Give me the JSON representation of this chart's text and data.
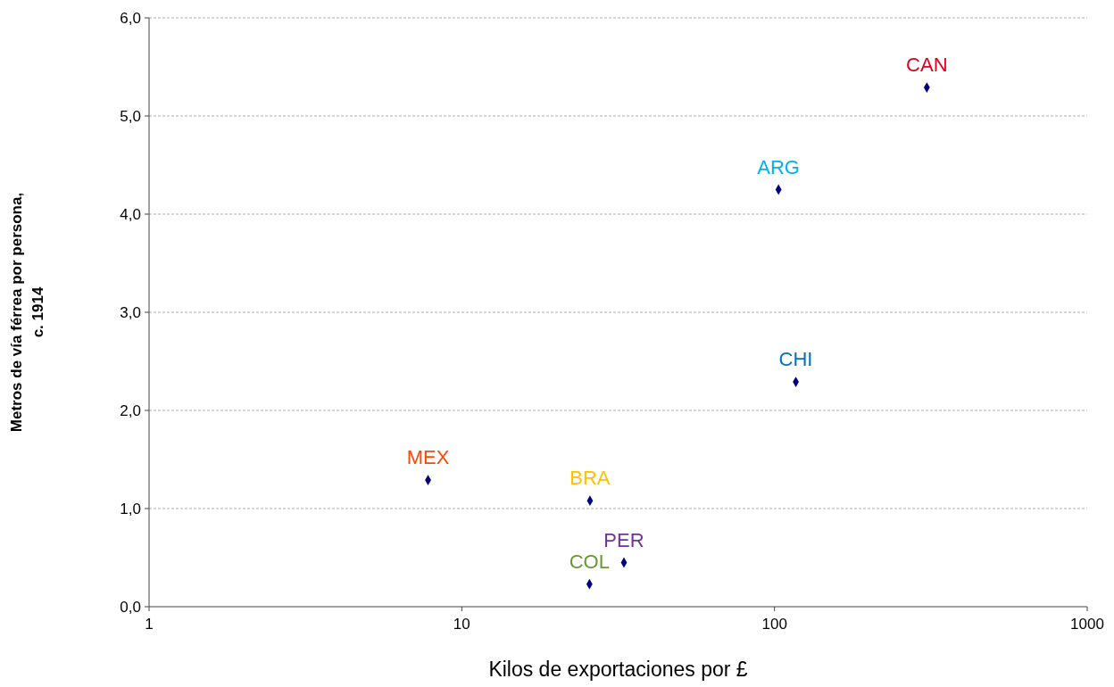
{
  "chart_data": {
    "type": "scatter",
    "xlabel": "Kilos de exportaciones por £",
    "ylabel": "Metros de vía férrea por persona,\nc. 1914",
    "log": "x",
    "xlim": [
      1,
      1000
    ],
    "xticks": [
      1,
      10,
      100,
      1000
    ],
    "ylim": [
      0,
      6
    ],
    "yticks": [
      {
        "value": 0,
        "label": "0,0"
      },
      {
        "value": 1,
        "label": "1,0"
      },
      {
        "value": 2,
        "label": "2,0"
      },
      {
        "value": 3,
        "label": "3,0"
      },
      {
        "value": 4,
        "label": "4,0"
      },
      {
        "value": 5,
        "label": "5,0"
      },
      {
        "value": 6,
        "label": "6,0"
      }
    ],
    "grid": "y",
    "marker": "diamond",
    "series": [
      {
        "color": "#000080",
        "x": [
          7.8,
          25.7,
          25.6,
          33,
          117,
          103,
          307
        ],
        "values": [
          1.29,
          1.08,
          0.23,
          0.45,
          2.29,
          4.25,
          5.29
        ]
      }
    ],
    "annotations": [
      {
        "text": "MEX",
        "x": 7.8,
        "y": 1.29
      },
      {
        "text": "BRA",
        "x": 25.7,
        "y": 1.08
      },
      {
        "text": "COL",
        "x": 25.6,
        "y": 0.23
      },
      {
        "text": "PER",
        "x": 33,
        "y": 0.45
      },
      {
        "text": "CHI",
        "x": 117,
        "y": 2.29
      },
      {
        "text": "ARG",
        "x": 103,
        "y": 4.25
      },
      {
        "text": "CAN",
        "x": 307,
        "y": 5.29
      }
    ]
  }
}
